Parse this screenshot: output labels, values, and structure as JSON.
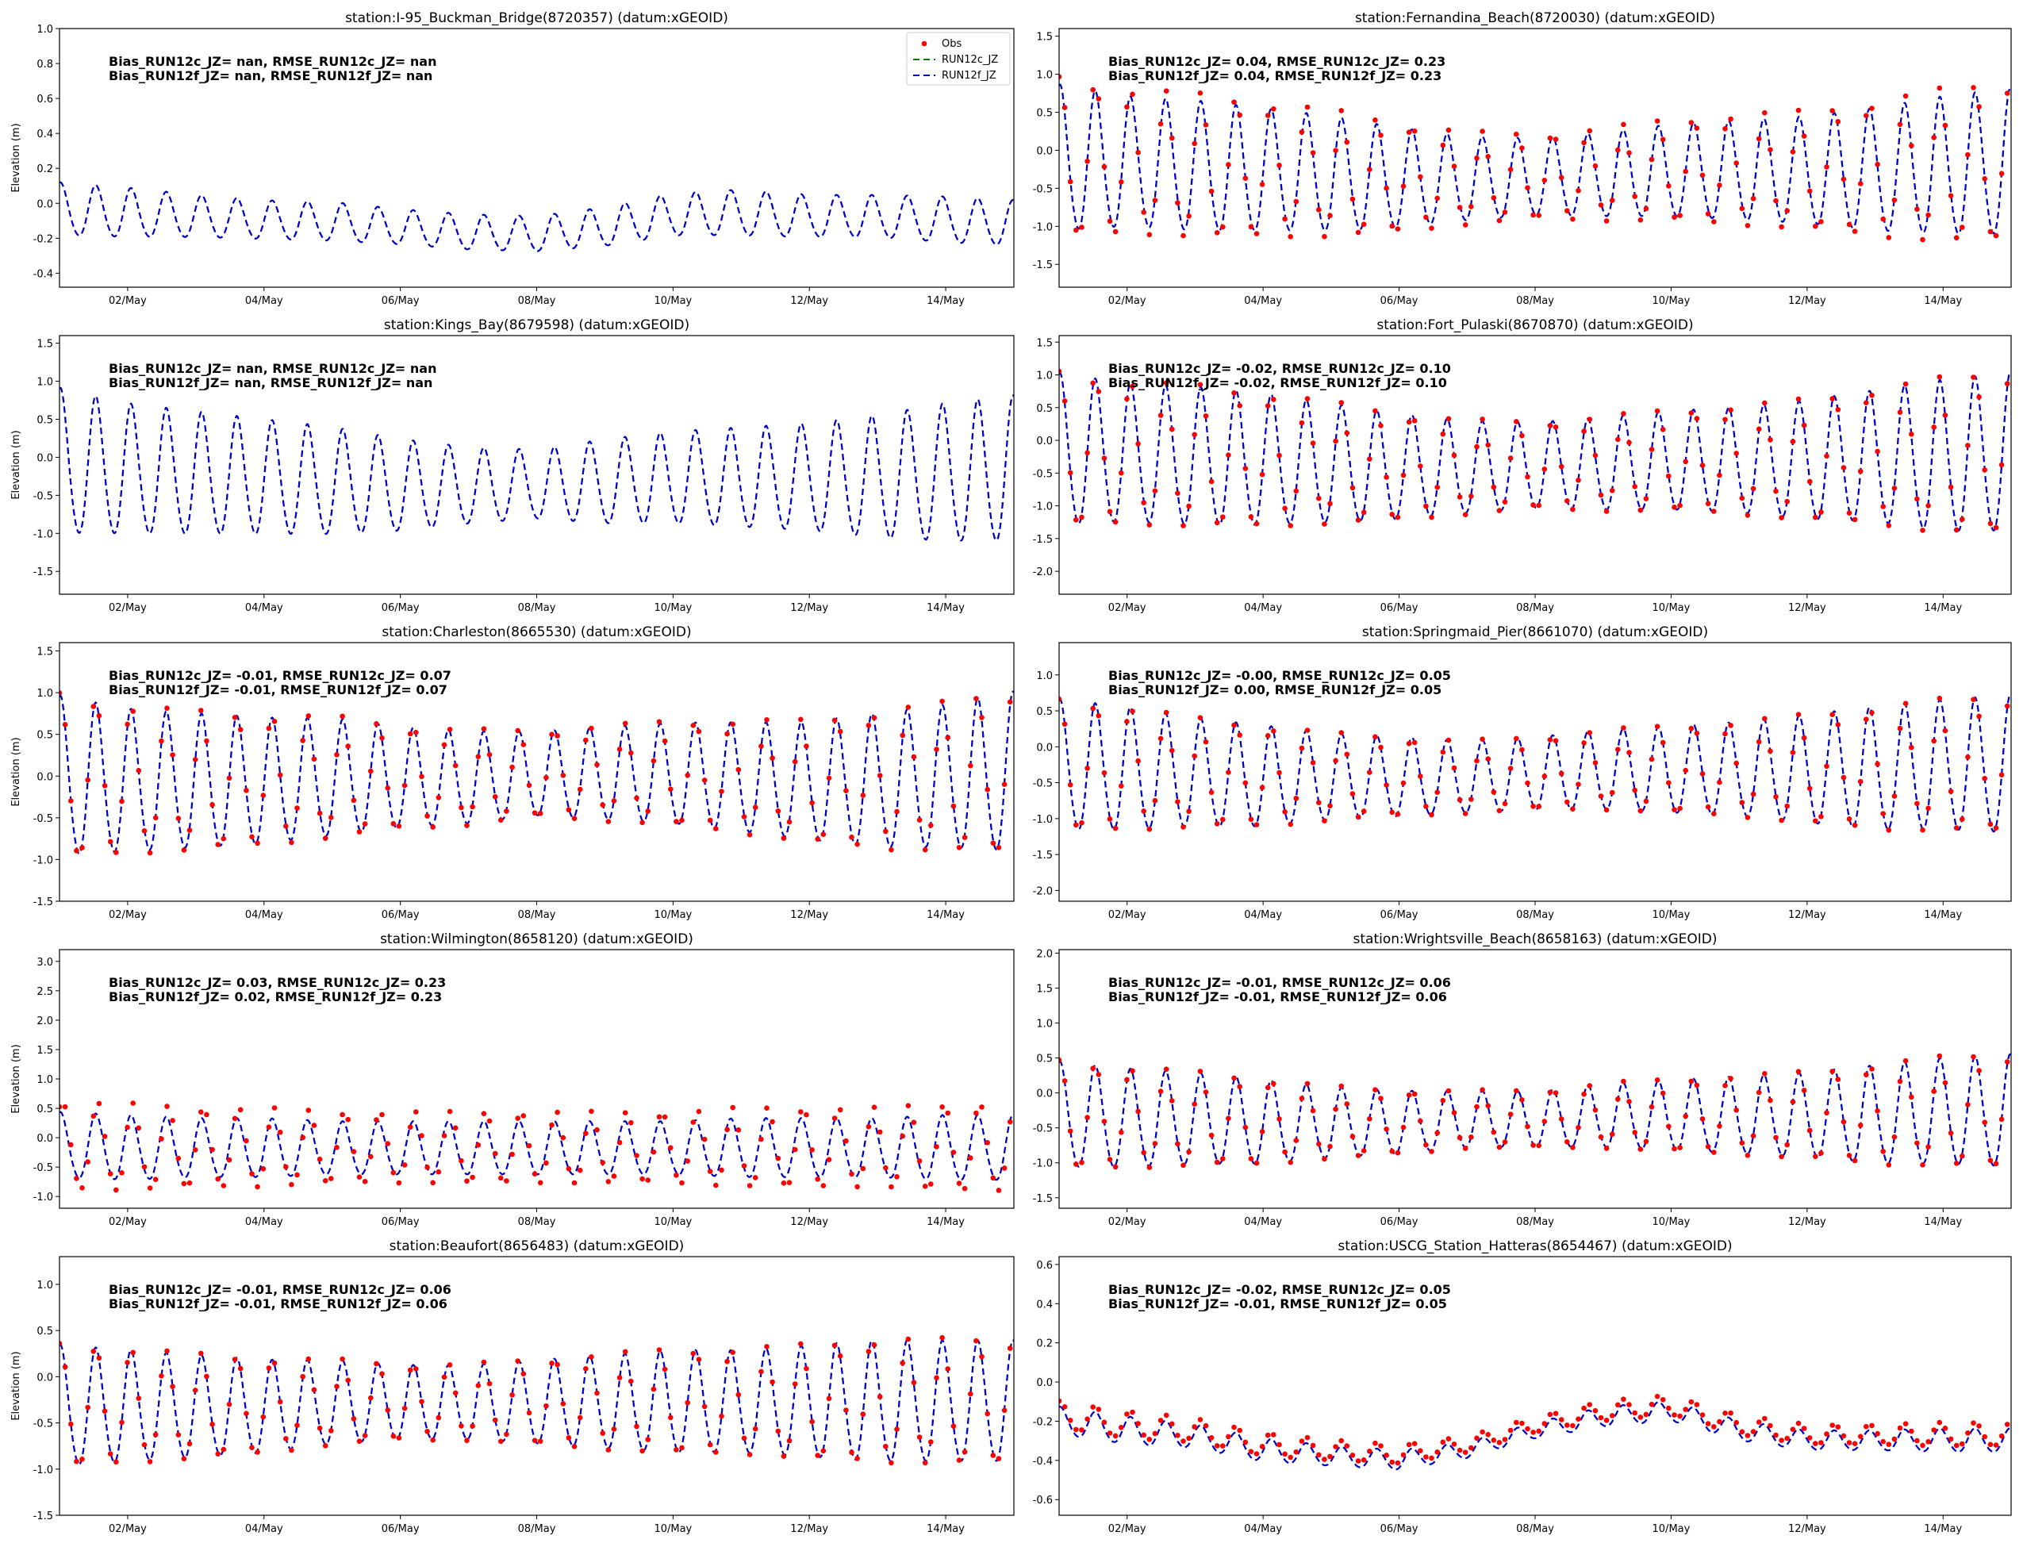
{
  "figure": {
    "ylabel": "Elevation (m)",
    "x_ticks": [
      "02/May",
      "04/May",
      "06/May",
      "08/May",
      "10/May",
      "12/May",
      "14/May"
    ],
    "x_tick_days": [
      2,
      4,
      6,
      8,
      10,
      12,
      14
    ],
    "x_range_days": [
      1.0,
      15.0
    ],
    "legend": [
      {
        "label": "Obs",
        "style": "dots",
        "color": "#ff0000"
      },
      {
        "label": "RUN12c_JZ",
        "style": "dashed",
        "color": "#008000"
      },
      {
        "label": "RUN12f_JZ",
        "style": "dashed",
        "color": "#0000cc"
      }
    ]
  },
  "chart_data": [
    {
      "type": "line",
      "title": "station:I-95_Buckman_Bridge(8720357) (datum:xGEOID)",
      "ylim": [
        -0.48,
        1.0
      ],
      "yticks": [
        -0.4,
        -0.2,
        0.0,
        0.2,
        0.4,
        0.6,
        0.8,
        1.0
      ],
      "stats": [
        "Bias_RUN12c_JZ=   nan, RMSE_RUN12c_JZ=   nan",
        "Bias_RUN12f_JZ=   nan, RMSE_RUN12f_JZ=   nan"
      ],
      "obs": false,
      "legend": true,
      "x": [
        1.0,
        2.0,
        3.0,
        4.0,
        5.0,
        6.0,
        7.0,
        8.0,
        9.0,
        10.0,
        11.0,
        12.0,
        13.0,
        14.0,
        15.0
      ],
      "mean": [
        -0.04,
        -0.06,
        -0.08,
        -0.1,
        -0.11,
        -0.14,
        -0.17,
        -0.18,
        -0.14,
        -0.07,
        -0.06,
        -0.08,
        -0.08,
        -0.1,
        -0.12
      ],
      "amp": [
        0.15,
        0.14,
        0.12,
        0.11,
        0.11,
        0.1,
        0.1,
        0.1,
        0.11,
        0.12,
        0.13,
        0.12,
        0.12,
        0.13,
        0.13
      ]
    },
    {
      "type": "line",
      "title": "station:Fernandina_Beach(8720030) (datum:xGEOID)",
      "ylim": [
        -1.8,
        1.6
      ],
      "yticks": [
        -1.5,
        -1.0,
        -0.5,
        0.0,
        0.5,
        1.0,
        1.5
      ],
      "stats": [
        "Bias_RUN12c_JZ=  0.04, RMSE_RUN12c_JZ=  0.23",
        "Bias_RUN12f_JZ=  0.04, RMSE_RUN12f_JZ=  0.23"
      ],
      "obs": true,
      "legend": false,
      "x": [
        1.0,
        2.0,
        3.0,
        4.0,
        5.0,
        6.0,
        7.0,
        8.0,
        9.0,
        10.0,
        11.0,
        12.0,
        13.0,
        14.0,
        15.0
      ],
      "mean": [
        -0.15,
        -0.2,
        -0.25,
        -0.3,
        -0.35,
        -0.4,
        -0.4,
        -0.38,
        -0.35,
        -0.3,
        -0.3,
        -0.3,
        -0.3,
        -0.25,
        -0.2
      ],
      "amp": [
        0.95,
        0.85,
        0.85,
        0.8,
        0.75,
        0.65,
        0.55,
        0.5,
        0.55,
        0.6,
        0.65,
        0.7,
        0.8,
        0.9,
        0.95
      ],
      "obs_scale": 1.12,
      "obs_offset": 0.0
    },
    {
      "type": "line",
      "title": "station:Kings_Bay(8679598) (datum:xGEOID)",
      "ylim": [
        -1.8,
        1.6
      ],
      "yticks": [
        -1.5,
        -1.0,
        -0.5,
        0.0,
        0.5,
        1.0,
        1.5
      ],
      "stats": [
        "Bias_RUN12c_JZ=   nan, RMSE_RUN12c_JZ=   nan",
        "Bias_RUN12f_JZ=   nan, RMSE_RUN12f_JZ=   nan"
      ],
      "obs": false,
      "legend": false,
      "x": [
        1.0,
        2.0,
        3.0,
        4.0,
        5.0,
        6.0,
        7.0,
        8.0,
        9.0,
        10.0,
        11.0,
        12.0,
        13.0,
        14.0,
        15.0
      ],
      "mean": [
        -0.1,
        -0.2,
        -0.25,
        -0.3,
        -0.35,
        -0.4,
        -0.4,
        -0.38,
        -0.35,
        -0.3,
        -0.3,
        -0.3,
        -0.3,
        -0.25,
        -0.2
      ],
      "amp": [
        0.95,
        0.85,
        0.8,
        0.75,
        0.7,
        0.6,
        0.5,
        0.45,
        0.55,
        0.6,
        0.65,
        0.7,
        0.8,
        0.9,
        0.95
      ]
    },
    {
      "type": "line",
      "title": "station:Fort_Pulaski(8670870) (datum:xGEOID)",
      "ylim": [
        -2.35,
        1.6
      ],
      "yticks": [
        -2.0,
        -1.5,
        -1.0,
        -0.5,
        0.0,
        0.5,
        1.0,
        1.5
      ],
      "stats": [
        "Bias_RUN12c_JZ= -0.02, RMSE_RUN12c_JZ=  0.10",
        "Bias_RUN12f_JZ= -0.02, RMSE_RUN12f_JZ=  0.10"
      ],
      "obs": true,
      "legend": false,
      "x": [
        1.0,
        2.0,
        3.0,
        4.0,
        5.0,
        6.0,
        7.0,
        8.0,
        9.0,
        10.0,
        11.0,
        12.0,
        13.0,
        14.0,
        15.0
      ],
      "mean": [
        -0.2,
        -0.25,
        -0.3,
        -0.35,
        -0.4,
        -0.45,
        -0.45,
        -0.42,
        -0.4,
        -0.35,
        -0.35,
        -0.35,
        -0.3,
        -0.3,
        -0.25
      ],
      "amp": [
        1.15,
        1.05,
        1.05,
        1.0,
        0.9,
        0.8,
        0.7,
        0.65,
        0.7,
        0.75,
        0.8,
        0.9,
        1.0,
        1.15,
        1.2
      ],
      "obs_scale": 1.04,
      "obs_offset": 0.0
    },
    {
      "type": "line",
      "title": "station:Charleston(8665530) (datum:xGEOID)",
      "ylim": [
        -1.5,
        1.6
      ],
      "yticks": [
        -1.5,
        -1.0,
        -0.5,
        0.0,
        0.5,
        1.0,
        1.5
      ],
      "stats": [
        "Bias_RUN12c_JZ= -0.01, RMSE_RUN12c_JZ=  0.07",
        "Bias_RUN12f_JZ= -0.01, RMSE_RUN12f_JZ=  0.07"
      ],
      "obs": true,
      "legend": false,
      "x": [
        1.0,
        2.0,
        3.0,
        4.0,
        5.0,
        6.0,
        7.0,
        8.0,
        9.0,
        10.0,
        11.0,
        12.0,
        13.0,
        14.0,
        15.0
      ],
      "mean": [
        -0.05,
        -0.1,
        -0.1,
        -0.1,
        -0.05,
        -0.05,
        -0.05,
        0.0,
        0.0,
        0.0,
        -0.05,
        -0.1,
        -0.1,
        -0.05,
        0.0
      ],
      "amp": [
        0.95,
        0.85,
        0.8,
        0.75,
        0.7,
        0.6,
        0.55,
        0.5,
        0.55,
        0.6,
        0.65,
        0.7,
        0.8,
        0.85,
        0.95
      ],
      "obs_scale": 1.05,
      "obs_offset": 0.0
    },
    {
      "type": "line",
      "title": "station:Springmaid_Pier(8661070) (datum:xGEOID)",
      "ylim": [
        -2.15,
        1.45
      ],
      "yticks": [
        -2.0,
        -1.5,
        -1.0,
        -0.5,
        0.0,
        0.5,
        1.0
      ],
      "stats": [
        "Bias_RUN12c_JZ= -0.00, RMSE_RUN12c_JZ=  0.05",
        "Bias_RUN12f_JZ=  0.00, RMSE_RUN12f_JZ=  0.05"
      ],
      "obs": true,
      "legend": false,
      "x": [
        1.0,
        2.0,
        3.0,
        4.0,
        5.0,
        6.0,
        7.0,
        8.0,
        9.0,
        10.0,
        11.0,
        12.0,
        13.0,
        14.0,
        15.0
      ],
      "mean": [
        -0.3,
        -0.35,
        -0.4,
        -0.45,
        -0.45,
        -0.45,
        -0.45,
        -0.4,
        -0.35,
        -0.35,
        -0.35,
        -0.35,
        -0.35,
        -0.3,
        -0.3
      ],
      "amp": [
        0.9,
        0.85,
        0.75,
        0.7,
        0.6,
        0.55,
        0.5,
        0.5,
        0.55,
        0.6,
        0.65,
        0.75,
        0.85,
        0.9,
        0.95
      ],
      "obs_scale": 1.02,
      "obs_offset": 0.0
    },
    {
      "type": "line",
      "title": "station:Wilmington(8658120) (datum:xGEOID)",
      "ylim": [
        -1.2,
        3.2
      ],
      "yticks": [
        -1.0,
        -0.5,
        0.0,
        0.5,
        1.0,
        1.5,
        2.0,
        2.5,
        3.0
      ],
      "stats": [
        "Bias_RUN12c_JZ=  0.03, RMSE_RUN12c_JZ=  0.23",
        "Bias_RUN12f_JZ=  0.02, RMSE_RUN12f_JZ=  0.23"
      ],
      "obs": true,
      "legend": false,
      "x": [
        1.0,
        2.0,
        3.0,
        4.0,
        5.0,
        6.0,
        7.0,
        8.0,
        9.0,
        10.0,
        11.0,
        12.0,
        13.0,
        14.0,
        15.0
      ],
      "mean": [
        -0.15,
        -0.2,
        -0.2,
        -0.2,
        -0.2,
        -0.2,
        -0.2,
        -0.2,
        -0.2,
        -0.2,
        -0.2,
        -0.2,
        -0.2,
        -0.2,
        -0.2
      ],
      "amp": [
        0.55,
        0.55,
        0.5,
        0.5,
        0.45,
        0.45,
        0.45,
        0.45,
        0.45,
        0.45,
        0.5,
        0.5,
        0.5,
        0.55,
        0.55
      ],
      "obs_scale": 1.35,
      "obs_offset": 0.0,
      "obs_lag": 0.35
    },
    {
      "type": "line",
      "title": "station:Wrightsville_Beach(8658163) (datum:xGEOID)",
      "ylim": [
        -1.65,
        2.05
      ],
      "yticks": [
        -1.5,
        -1.0,
        -0.5,
        0.0,
        0.5,
        1.0,
        1.5,
        2.0
      ],
      "stats": [
        "Bias_RUN12c_JZ= -0.01, RMSE_RUN12c_JZ=  0.06",
        "Bias_RUN12f_JZ= -0.01, RMSE_RUN12f_JZ=  0.06"
      ],
      "obs": true,
      "legend": false,
      "x": [
        1.0,
        2.0,
        3.0,
        4.0,
        5.0,
        6.0,
        7.0,
        8.0,
        9.0,
        10.0,
        11.0,
        12.0,
        13.0,
        14.0,
        15.0
      ],
      "mean": [
        -0.35,
        -0.4,
        -0.4,
        -0.45,
        -0.45,
        -0.45,
        -0.4,
        -0.4,
        -0.35,
        -0.35,
        -0.35,
        -0.35,
        -0.35,
        -0.3,
        -0.3
      ],
      "amp": [
        0.75,
        0.7,
        0.65,
        0.6,
        0.5,
        0.45,
        0.4,
        0.4,
        0.45,
        0.5,
        0.55,
        0.6,
        0.7,
        0.75,
        0.8
      ],
      "obs_scale": 1.04,
      "obs_offset": 0.0
    },
    {
      "type": "line",
      "title": "station:Beaufort(8656483) (datum:xGEOID)",
      "ylim": [
        -1.5,
        1.3
      ],
      "yticks": [
        -1.5,
        -1.0,
        -0.5,
        0.0,
        0.5,
        1.0
      ],
      "stats": [
        "Bias_RUN12c_JZ= -0.01, RMSE_RUN12c_JZ=  0.06",
        "Bias_RUN12f_JZ= -0.01, RMSE_RUN12f_JZ=  0.06"
      ],
      "obs": true,
      "legend": false,
      "x": [
        1.0,
        2.0,
        3.0,
        4.0,
        5.0,
        6.0,
        7.0,
        8.0,
        9.0,
        10.0,
        11.0,
        12.0,
        13.0,
        14.0,
        15.0
      ],
      "mean": [
        -0.35,
        -0.35,
        -0.35,
        -0.35,
        -0.3,
        -0.3,
        -0.3,
        -0.3,
        -0.3,
        -0.3,
        -0.3,
        -0.3,
        -0.3,
        -0.3,
        -0.3
      ],
      "amp": [
        0.65,
        0.6,
        0.55,
        0.5,
        0.45,
        0.4,
        0.4,
        0.45,
        0.5,
        0.55,
        0.55,
        0.6,
        0.65,
        0.65,
        0.65
      ],
      "obs_scale": 1.04,
      "obs_offset": 0.0
    },
    {
      "type": "line",
      "title": "station:USCG_Station_Hatteras(8654467) (datum:xGEOID)",
      "ylim": [
        -0.68,
        0.64
      ],
      "yticks": [
        -0.6,
        -0.4,
        -0.2,
        0.0,
        0.2,
        0.4,
        0.6
      ],
      "stats": [
        "Bias_RUN12c_JZ= -0.02, RMSE_RUN12c_JZ=  0.05",
        "Bias_RUN12f_JZ= -0.01, RMSE_RUN12f_JZ=  0.05"
      ],
      "obs": true,
      "legend": false,
      "x": [
        1.0,
        2.0,
        3.0,
        4.0,
        5.0,
        6.0,
        7.0,
        8.0,
        9.0,
        10.0,
        11.0,
        12.0,
        13.0,
        14.0,
        15.0
      ],
      "mean": [
        -0.2,
        -0.25,
        -0.28,
        -0.35,
        -0.38,
        -0.4,
        -0.35,
        -0.25,
        -0.18,
        -0.15,
        -0.25,
        -0.3,
        -0.3,
        -0.3,
        -0.3
      ],
      "amp": [
        0.07,
        0.07,
        0.06,
        0.06,
        0.05,
        0.05,
        0.04,
        0.04,
        0.05,
        0.05,
        0.05,
        0.05,
        0.05,
        0.06,
        0.06
      ],
      "obs_scale": 1.0,
      "obs_offset": 0.03
    }
  ]
}
